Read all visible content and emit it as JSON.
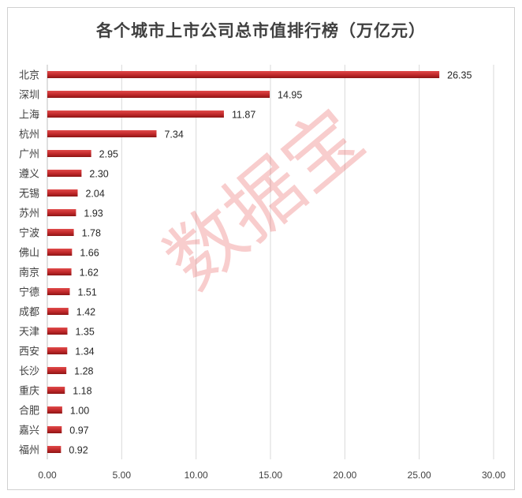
{
  "chart_data": {
    "type": "bar",
    "orientation": "horizontal",
    "title": "各个城市上市公司总市值排行榜（万亿元）",
    "categories": [
      "北京",
      "深圳",
      "上海",
      "杭州",
      "广州",
      "遵义",
      "无锡",
      "苏州",
      "宁波",
      "佛山",
      "南京",
      "宁德",
      "成都",
      "天津",
      "西安",
      "长沙",
      "重庆",
      "合肥",
      "嘉兴",
      "福州"
    ],
    "values": [
      26.35,
      14.95,
      11.87,
      7.34,
      2.95,
      2.3,
      2.04,
      1.93,
      1.78,
      1.66,
      1.62,
      1.51,
      1.42,
      1.35,
      1.34,
      1.28,
      1.18,
      1.0,
      0.97,
      0.92
    ],
    "value_labels": [
      "26.35",
      "14.95",
      "11.87",
      "7.34",
      "2.95",
      "2.30",
      "2.04",
      "1.93",
      "1.78",
      "1.66",
      "1.62",
      "1.51",
      "1.42",
      "1.35",
      "1.34",
      "1.28",
      "1.18",
      "1.00",
      "0.97",
      "0.92"
    ],
    "xlim": [
      0,
      30
    ],
    "x_ticks": [
      "0.00",
      "5.00",
      "10.00",
      "15.00",
      "20.00",
      "25.00",
      "30.00"
    ],
    "grid": "vertical",
    "bar_color": "#c0282a",
    "legend": "none"
  },
  "watermark": "数据宝"
}
